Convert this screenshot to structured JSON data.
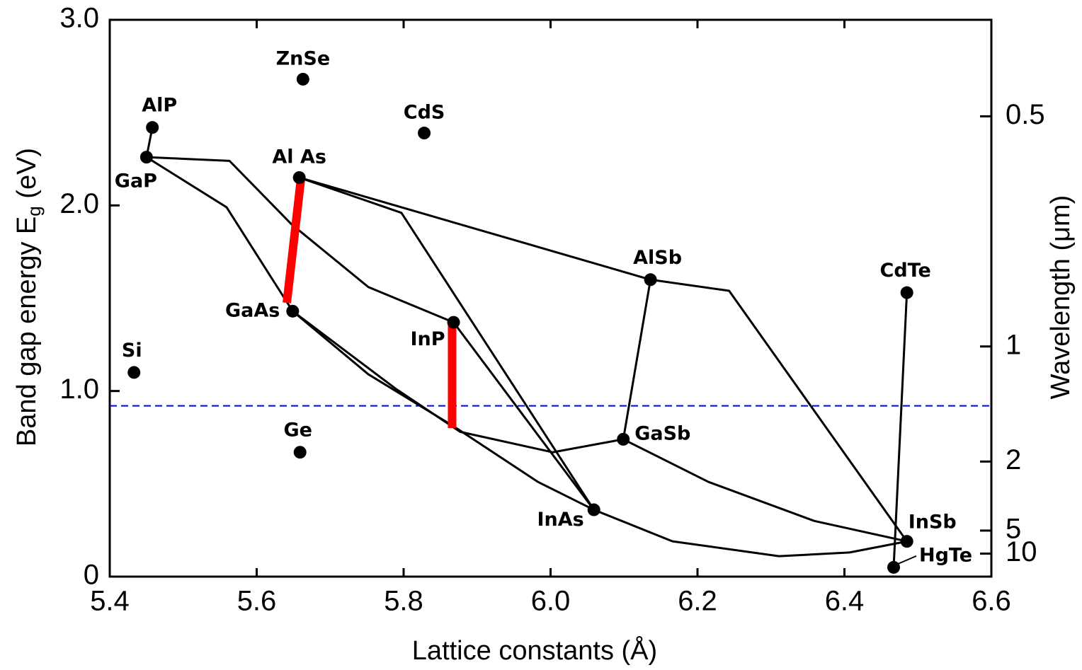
{
  "chart_data": {
    "type": "scatter",
    "xlabel": "Lattice constants (Å)",
    "ylabel": {
      "text": "Band gap energy E",
      "subscript": "g",
      "suffix": " (eV)"
    },
    "y2label": "Wavelength (μm)",
    "xlim": [
      5.4,
      6.6
    ],
    "ylim": [
      0,
      3.0
    ],
    "xticks": [
      5.4,
      5.6,
      5.8,
      {
        "value": 6.0,
        "label": "6.0"
      },
      6.2,
      6.4,
      6.6
    ],
    "yticks": [
      0,
      {
        "value": 1.0,
        "label": "1.0"
      },
      {
        "value": 2.0,
        "label": "2.0"
      },
      {
        "value": 3.0,
        "label": "3.0"
      }
    ],
    "y2ticks": [
      0.5,
      1,
      2,
      5,
      10
    ],
    "points": {
      "color": "#000000",
      "names": [
        "ZnSe",
        "AlP",
        "GaP",
        "CdS",
        "Al As",
        "AlSb",
        "CdTe",
        "GaAs",
        "InP",
        "Si",
        "Ge",
        "GaSb",
        "InAs",
        "InSb",
        "HgTe"
      ],
      "x": [
        5.663,
        5.458,
        5.45,
        5.828,
        5.658,
        6.136,
        6.485,
        5.649,
        5.868,
        5.433,
        5.659,
        6.099,
        6.059,
        6.485,
        6.467
      ],
      "y": [
        2.68,
        2.42,
        2.26,
        2.39,
        2.15,
        1.6,
        1.53,
        1.43,
        1.37,
        1.1,
        0.67,
        0.74,
        0.36,
        0.19,
        0.05
      ]
    },
    "curves": {
      "color": "#000000",
      "lines": [
        {
          "x": [
            5.45,
            5.458
          ],
          "y": [
            2.26,
            2.42
          ]
        },
        {
          "x": [
            5.45,
            5.563,
            5.647,
            5.752,
            5.868
          ],
          "y": [
            2.26,
            2.24,
            1.9,
            1.56,
            1.37
          ]
        },
        {
          "x": [
            5.45,
            5.559,
            5.649
          ],
          "y": [
            2.26,
            1.99,
            1.43
          ]
        },
        {
          "x": [
            5.658,
            5.797,
            6.059
          ],
          "y": [
            2.15,
            1.96,
            0.36
          ]
        },
        {
          "x": [
            5.658,
            6.136,
            6.243,
            6.485
          ],
          "y": [
            2.15,
            1.6,
            1.54,
            0.19
          ]
        },
        {
          "x": [
            5.868,
            6.059
          ],
          "y": [
            1.37,
            0.36
          ]
        },
        {
          "x": [
            5.649,
            5.752,
            5.868,
            5.983,
            6.059
          ],
          "y": [
            1.43,
            1.09,
            0.81,
            0.51,
            0.36
          ]
        },
        {
          "x": [
            5.649,
            5.79,
            5.877,
            6.003,
            6.099
          ],
          "y": [
            1.43,
            1.01,
            0.78,
            0.67,
            0.74
          ]
        },
        {
          "x": [
            6.099,
            6.136
          ],
          "y": [
            0.74,
            1.6
          ]
        },
        {
          "x": [
            6.099,
            6.215,
            6.359,
            6.485
          ],
          "y": [
            0.74,
            0.51,
            0.3,
            0.19
          ]
        },
        {
          "x": [
            6.059,
            6.166,
            6.311,
            6.407,
            6.485
          ],
          "y": [
            0.36,
            0.19,
            0.11,
            0.13,
            0.19
          ]
        },
        {
          "x": [
            6.485,
            6.467
          ],
          "y": [
            1.53,
            0.05
          ]
        }
      ]
    },
    "segments": {
      "color": "#ff0000",
      "items": [
        {
          "x": [
            5.641,
            5.66
          ],
          "y": [
            1.475,
            2.135
          ]
        },
        {
          "x": [
            5.866,
            5.866
          ],
          "y": [
            0.8,
            1.38
          ]
        }
      ]
    },
    "hline": {
      "y": 0.92,
      "color": "#0000ff",
      "style": "dashed"
    }
  }
}
